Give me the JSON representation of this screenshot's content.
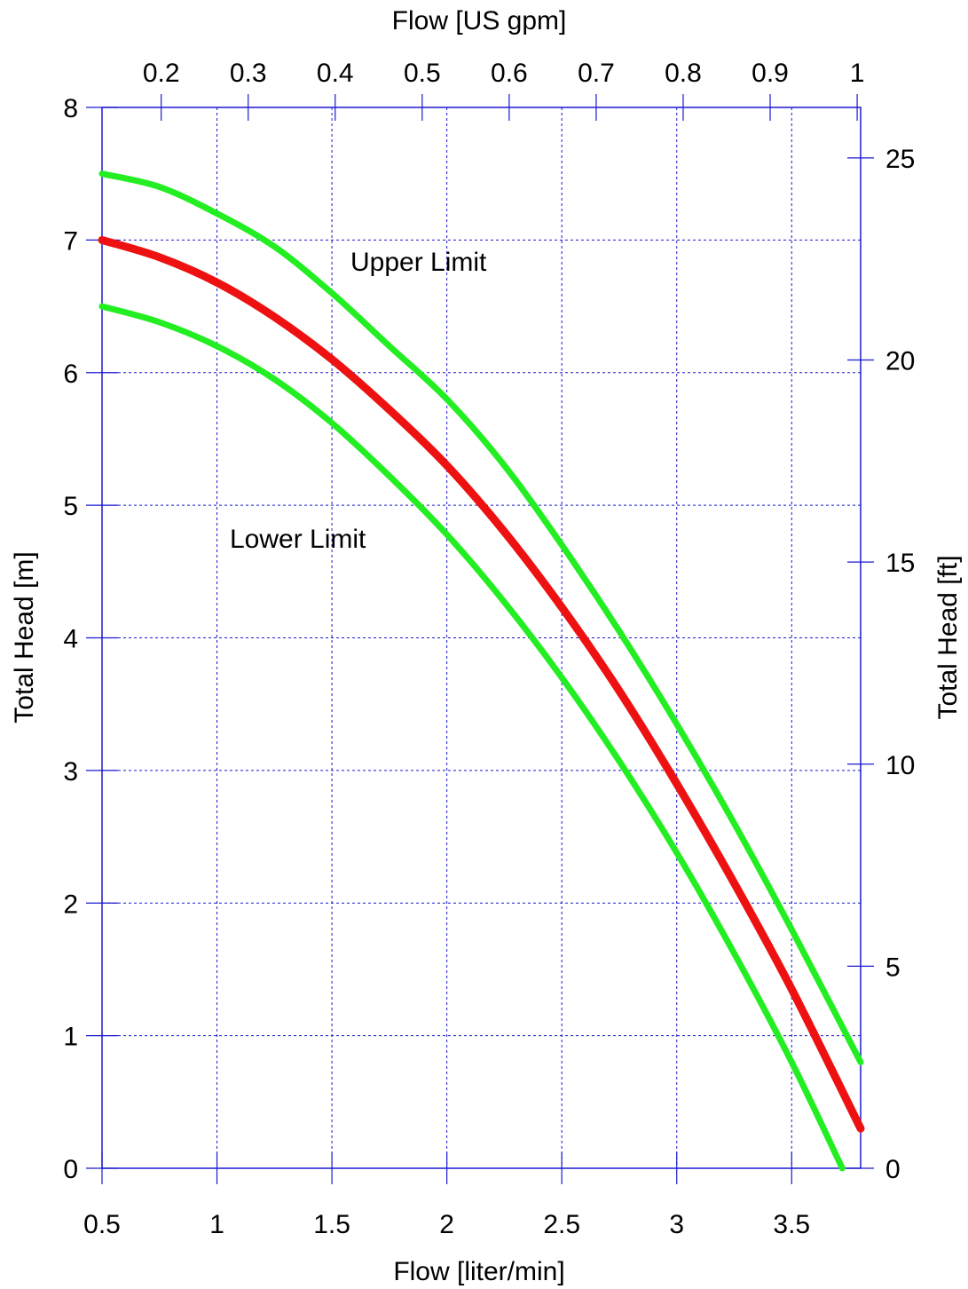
{
  "chart_data": {
    "type": "line",
    "x_bottom": {
      "label": "Flow [liter/min]",
      "range": [
        0.5,
        3.8
      ],
      "ticks": [
        "0.5",
        "1",
        "1.5",
        "2",
        "2.5",
        "3",
        "3.5"
      ]
    },
    "x_top": {
      "label": "Flow [US gpm]",
      "range": [
        0.132,
        1.004
      ],
      "ticks": [
        "0.2",
        "0.3",
        "0.4",
        "0.5",
        "0.6",
        "0.7",
        "0.8",
        "0.9",
        "1"
      ]
    },
    "y_left": {
      "label": "Total Head [m]",
      "range": [
        0,
        8
      ],
      "ticks": [
        "0",
        "1",
        "2",
        "3",
        "4",
        "5",
        "6",
        "7",
        "8"
      ]
    },
    "y_right": {
      "label": "Total Head [ft]",
      "range": [
        0,
        26.25
      ],
      "ticks": [
        "0",
        "5",
        "10",
        "15",
        "20",
        "25"
      ]
    },
    "grid": true,
    "series": [
      {
        "name": "Upper Limit",
        "color": "#22ee22",
        "x": [
          0.5,
          0.75,
          1.0,
          1.25,
          1.5,
          1.75,
          2.0,
          2.25,
          2.5,
          2.75,
          3.0,
          3.25,
          3.5,
          3.8
        ],
        "y": [
          7.5,
          7.4,
          7.2,
          6.95,
          6.6,
          6.2,
          5.8,
          5.3,
          4.7,
          4.05,
          3.35,
          2.6,
          1.8,
          0.8
        ]
      },
      {
        "color": "#ee1111",
        "x": [
          0.5,
          0.75,
          1.0,
          1.25,
          1.5,
          1.75,
          2.0,
          2.25,
          2.5,
          2.75,
          3.0,
          3.25,
          3.5,
          3.8
        ],
        "y": [
          7.0,
          6.87,
          6.68,
          6.42,
          6.1,
          5.72,
          5.3,
          4.8,
          4.23,
          3.6,
          2.9,
          2.15,
          1.35,
          0.3
        ]
      },
      {
        "name": "Lower Limit",
        "color": "#22ee22",
        "x": [
          0.5,
          0.75,
          1.0,
          1.25,
          1.5,
          1.75,
          2.0,
          2.25,
          2.5,
          2.75,
          3.0,
          3.25,
          3.5,
          3.72
        ],
        "y": [
          6.5,
          6.38,
          6.2,
          5.95,
          5.62,
          5.22,
          4.78,
          4.27,
          3.7,
          3.07,
          2.38,
          1.62,
          0.8,
          0.0
        ]
      }
    ],
    "annotations": [
      "Upper Limit",
      "Lower Limit"
    ]
  }
}
